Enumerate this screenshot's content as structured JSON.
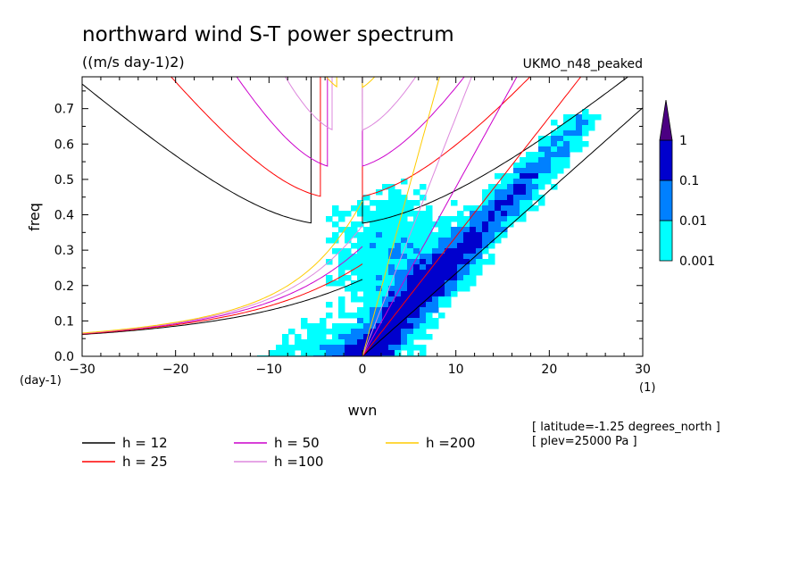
{
  "header": {
    "title": "northward wind S-T power spectrum",
    "units": "((m/s day-1)2)",
    "dataset": "UKMO_n48_peaked"
  },
  "chart_data": {
    "type": "heatmap",
    "xlabel": "wvn",
    "ylabel": "freq",
    "x_unit": "(1)",
    "y_unit": "(day-1)",
    "xlim": [
      -30,
      30
    ],
    "ylim": [
      0,
      0.79
    ],
    "x_ticks": [
      -30,
      -20,
      -10,
      0,
      10,
      20,
      30
    ],
    "y_ticks": [
      0.0,
      0.1,
      0.2,
      0.3,
      0.4,
      0.5,
      0.6,
      0.7
    ],
    "x_tick_labels": [
      "-30",
      "-20",
      "-10",
      "0",
      "10",
      "20",
      "30"
    ],
    "y_tick_labels": [
      "0.0",
      "0.1",
      "0.2",
      "0.3",
      "0.4",
      "0.5",
      "0.6",
      "0.7"
    ],
    "colorbar": {
      "levels": [
        0.001,
        0.01,
        0.1,
        1
      ],
      "level_labels": [
        "0.001",
        "0.01",
        "0.1",
        "1"
      ],
      "colors": [
        "#00ffff",
        "#0080ff",
        "#0000cd",
        "#4b0082"
      ]
    },
    "dispersion_curves": [
      {
        "label": "h = 12",
        "h": 12,
        "color": "#000000"
      },
      {
        "label": "h = 25",
        "h": 25,
        "color": "#ff0000"
      },
      {
        "label": "h = 50",
        "h": 50,
        "color": "#cc00cc"
      },
      {
        "label": "h =100",
        "h": 100,
        "color": "#dd88dd"
      },
      {
        "label": "h =200",
        "h": 200,
        "color": "#ffcc00"
      }
    ]
  },
  "annotations": {
    "latitude": "[ latitude=-1.25 degrees_north ]",
    "plev": "[ plev=25000 Pa ]"
  }
}
